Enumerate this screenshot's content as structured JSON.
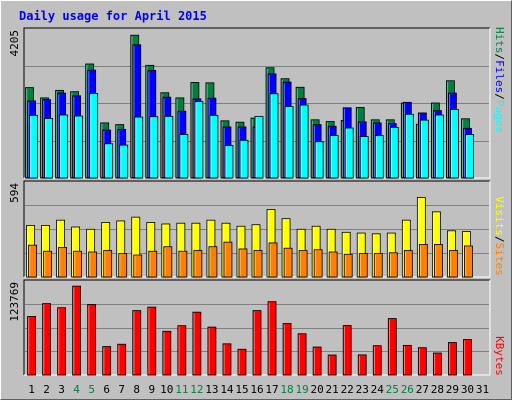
{
  "chart_data": {
    "type": "bar",
    "title": "Daily usage for April 2015",
    "days": [
      "1",
      "2",
      "3",
      "4",
      "5",
      "6",
      "7",
      "8",
      "9",
      "10",
      "11",
      "12",
      "13",
      "14",
      "15",
      "16",
      "17",
      "18",
      "19",
      "20",
      "21",
      "22",
      "23",
      "24",
      "25",
      "26",
      "27",
      "28",
      "29",
      "30",
      "31"
    ],
    "weekend_days": [
      "4",
      "5",
      "11",
      "12",
      "18",
      "19",
      "25",
      "26"
    ],
    "panels": [
      {
        "id": "hits_files_pages",
        "max_label": "4205",
        "ylim": [
          0,
          4205
        ],
        "series": [
          {
            "name": "Hits",
            "color": "#008040",
            "values": [
              2640,
              2340,
              2560,
              2520,
              3330,
              1610,
              1560,
              4170,
              3290,
              2490,
              2340,
              2790,
              2780,
              1670,
              1630,
              1750,
              3220,
              2900,
              2650,
              1700,
              1650,
              1680,
              2060,
              1700,
              1700,
              2190,
              1570,
              2190,
              2840,
              1730
            ]
          },
          {
            "name": "Files",
            "color": "#0000ff",
            "values": [
              2250,
              2290,
              2480,
              2400,
              3150,
              1400,
              1420,
              3890,
              3140,
              2360,
              1950,
              2310,
              2330,
              1490,
              1490,
              1490,
              3040,
              2800,
              2320,
              1560,
              1510,
              2050,
              1640,
              1610,
              1590,
              2210,
              1900,
              1970,
              2480,
              1450
            ]
          },
          {
            "name": "Pages",
            "color": "#00ffff",
            "values": [
              1830,
              1740,
              1840,
              1810,
              2470,
              1000,
              960,
              1780,
              1790,
              1800,
              1270,
              2230,
              1830,
              950,
              1100,
              1800,
              2460,
              2090,
              2130,
              1060,
              1240,
              1460,
              1210,
              1240,
              1480,
              1860,
              1690,
              1840,
              2000,
              1270
            ]
          }
        ]
      },
      {
        "id": "visits_sites",
        "max_label": "594",
        "ylim": [
          0,
          594
        ],
        "series": [
          {
            "name": "Visits",
            "color": "#ffff00",
            "values": [
              340,
              340,
              375,
              330,
              315,
              360,
              370,
              395,
              360,
              350,
              355,
              355,
              375,
              355,
              335,
              345,
              445,
              385,
              315,
              335,
              315,
              295,
              290,
              285,
              290,
              375,
              525,
              430,
              305,
              300
            ]
          },
          {
            "name": "Sites",
            "color": "#ff8000",
            "values": [
              210,
              170,
              195,
              170,
              165,
              175,
              155,
              145,
              170,
              200,
              170,
              175,
              200,
              230,
              185,
              175,
              225,
              190,
              175,
              180,
              165,
              150,
              155,
              155,
              160,
              175,
              215,
              215,
              175,
              205
            ]
          }
        ]
      },
      {
        "id": "kbytes",
        "max_label": "123769",
        "ylim": [
          0,
          123769
        ],
        "series": [
          {
            "name": "KBytes",
            "color": "#ff0000",
            "values": [
              81500,
              99300,
              93600,
              123600,
              98200,
              39600,
              42800,
              89600,
              94400,
              60800,
              68600,
              87400,
              66600,
              43400,
              35800,
              89600,
              102000,
              71600,
              57400,
              38900,
              27800,
              68800,
              28000,
              40800,
              78500,
              41200,
              38000,
              30600,
              45200,
              49300
            ]
          }
        ]
      }
    ],
    "legend": [
      {
        "label": "Pages",
        "color": "#00ffff"
      },
      {
        "label": "Files",
        "color": "#0000ff"
      },
      {
        "label": "Hits",
        "color": "#008040"
      },
      {
        "label": "Sites",
        "color": "#ff8000"
      },
      {
        "label": "Visits",
        "color": "#ffff00"
      },
      {
        "label": "KBytes",
        "color": "#ff0000"
      }
    ],
    "separator": "/",
    "colors": {
      "title": "#0000ff",
      "weekday_label": "#000000",
      "weekend_label": "#008040",
      "axis_label": "#000000",
      "legend_separator": "#000000",
      "plot_background": "#c0c0c0",
      "frame": "#000000",
      "gridline": "#808080"
    }
  }
}
